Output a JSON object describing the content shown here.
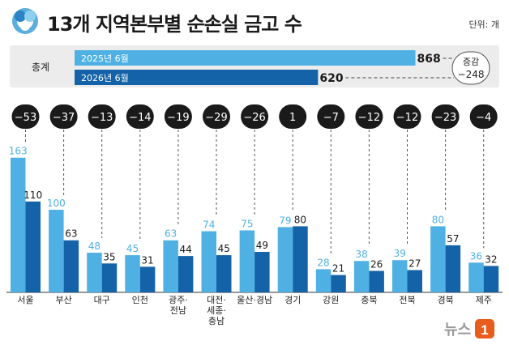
{
  "header": {
    "title": "13개 지역본부별 순손실 금고 수",
    "unit": "단위: 개"
  },
  "summary": {
    "label": "총계",
    "rows": [
      {
        "label": "2025년 6월",
        "value": 868,
        "color": "#4fb1e3"
      },
      {
        "label": "2026년 6월",
        "value": 620,
        "color": "#1463a8"
      }
    ],
    "change_label": "증감",
    "change_value": "−248"
  },
  "chart_data": {
    "type": "bar",
    "categories": [
      "서울",
      "부산",
      "대구",
      "인천",
      "광주·\n전남",
      "대전·\n세종·\n충남",
      "울산·경남",
      "경기",
      "강원",
      "충북",
      "전북",
      "경북",
      "제주"
    ],
    "series": [
      {
        "name": "2025년 6월",
        "values": [
          163,
          100,
          48,
          45,
          63,
          74,
          75,
          79,
          28,
          38,
          39,
          80,
          36
        ],
        "color": "#4fb1e3"
      },
      {
        "name": "2026년 6월",
        "values": [
          110,
          63,
          35,
          31,
          44,
          45,
          49,
          80,
          21,
          26,
          27,
          57,
          32
        ],
        "color": "#1463a8"
      }
    ],
    "changes": [
      "−53",
      "−37",
      "−13",
      "−14",
      "−19",
      "−29",
      "−26",
      "1",
      "−7",
      "−12",
      "−12",
      "−23",
      "−4"
    ],
    "title": "13개 지역본부별 순손실 금고 수",
    "xlabel": "",
    "ylabel": "",
    "ylim": [
      0,
      170
    ],
    "grid": false,
    "legend": "none"
  },
  "brand": {
    "name": "뉴스",
    "mark": "1"
  },
  "colors": {
    "light": "#4fb1e3",
    "dark": "#1463a8",
    "pill": "#1a1a1a",
    "panel": "#ececec"
  }
}
